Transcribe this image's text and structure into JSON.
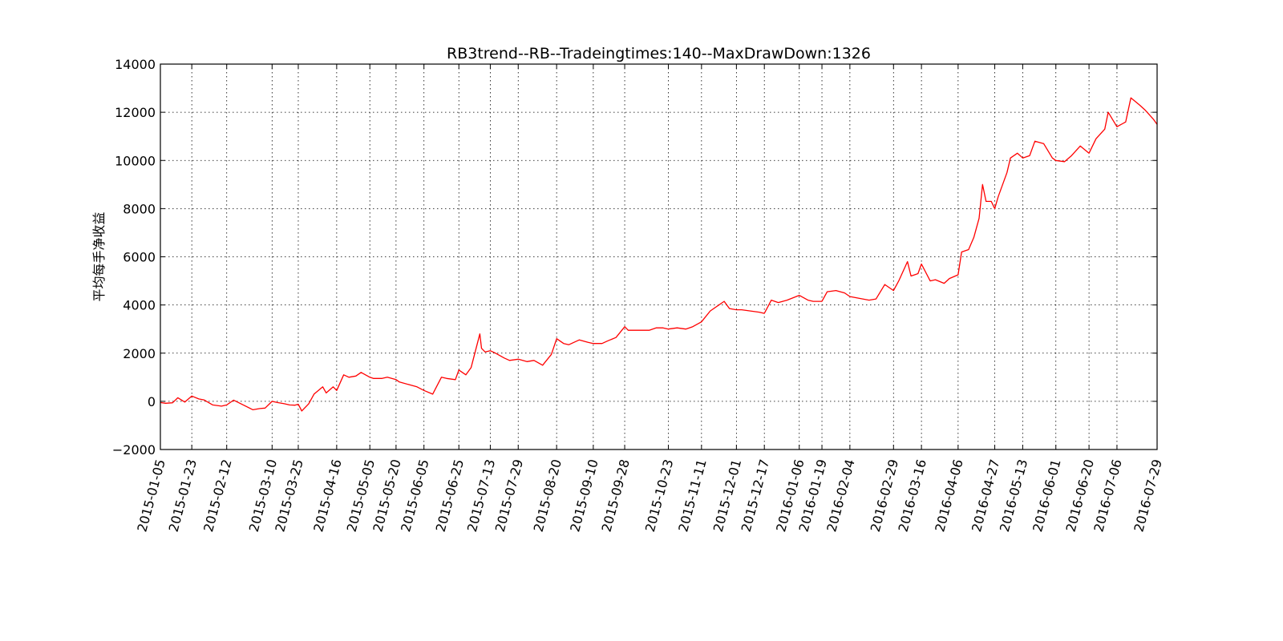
{
  "chart_data": {
    "type": "line",
    "title": "RB3trend--RB--Tradeingtimes:140--MaxDrawDown:1326",
    "xlabel": "",
    "ylabel": "平均每手净收益",
    "ylim": [
      -2000,
      14000
    ],
    "yticks": [
      -2000,
      0,
      2000,
      4000,
      6000,
      8000,
      10000,
      12000,
      14000
    ],
    "ytick_labels": [
      "−2000",
      "0",
      "2000",
      "4000",
      "6000",
      "8000",
      "10000",
      "12000",
      "14000"
    ],
    "xlim": [
      "2015-01-05",
      "2016-07-29"
    ],
    "xticks": [
      "2015-01-05",
      "2015-01-23",
      "2015-02-12",
      "2015-03-10",
      "2015-03-25",
      "2015-04-16",
      "2015-05-05",
      "2015-05-20",
      "2015-06-05",
      "2015-06-25",
      "2015-07-13",
      "2015-07-29",
      "2015-08-20",
      "2015-09-10",
      "2015-09-28",
      "2015-10-23",
      "2015-11-11",
      "2015-12-01",
      "2015-12-17",
      "2016-01-06",
      "2016-01-19",
      "2016-02-04",
      "2016-02-29",
      "2016-03-16",
      "2016-04-06",
      "2016-04-27",
      "2016-05-13",
      "2016-06-01",
      "2016-06-20",
      "2016-07-06",
      "2016-07-29"
    ],
    "grid": true,
    "colors": {
      "line": "#ff0000"
    },
    "x": [
      "2015-01-05",
      "2015-01-08",
      "2015-01-12",
      "2015-01-15",
      "2015-01-19",
      "2015-01-23",
      "2015-01-27",
      "2015-01-30",
      "2015-02-04",
      "2015-02-09",
      "2015-02-12",
      "2015-02-16",
      "2015-02-27",
      "2015-03-03",
      "2015-03-06",
      "2015-03-10",
      "2015-03-13",
      "2015-03-17",
      "2015-03-20",
      "2015-03-23",
      "2015-03-25",
      "2015-03-27",
      "2015-03-31",
      "2015-04-03",
      "2015-04-08",
      "2015-04-10",
      "2015-04-14",
      "2015-04-16",
      "2015-04-20",
      "2015-04-23",
      "2015-04-27",
      "2015-04-30",
      "2015-05-05",
      "2015-05-07",
      "2015-05-12",
      "2015-05-15",
      "2015-05-20",
      "2015-05-22",
      "2015-05-27",
      "2015-06-01",
      "2015-06-05",
      "2015-06-10",
      "2015-06-15",
      "2015-06-18",
      "2015-06-23",
      "2015-06-25",
      "2015-06-29",
      "2015-07-02",
      "2015-07-07",
      "2015-07-08",
      "2015-07-10",
      "2015-07-13",
      "2015-07-16",
      "2015-07-21",
      "2015-07-24",
      "2015-07-29",
      "2015-08-03",
      "2015-08-07",
      "2015-08-12",
      "2015-08-17",
      "2015-08-20",
      "2015-08-24",
      "2015-08-27",
      "2015-09-02",
      "2015-09-07",
      "2015-09-10",
      "2015-09-15",
      "2015-09-18",
      "2015-09-23",
      "2015-09-28",
      "2015-09-30",
      "2015-10-12",
      "2015-10-16",
      "2015-10-20",
      "2015-10-23",
      "2015-10-28",
      "2015-11-02",
      "2015-11-06",
      "2015-11-11",
      "2015-11-16",
      "2015-11-19",
      "2015-11-24",
      "2015-11-27",
      "2015-12-01",
      "2015-12-04",
      "2015-12-09",
      "2015-12-14",
      "2015-12-17",
      "2015-12-21",
      "2015-12-25",
      "2015-12-30",
      "2016-01-06",
      "2016-01-11",
      "2016-01-14",
      "2016-01-19",
      "2016-01-22",
      "2016-01-27",
      "2016-02-01",
      "2016-02-04",
      "2016-02-15",
      "2016-02-19",
      "2016-02-24",
      "2016-02-29",
      "2016-03-03",
      "2016-03-08",
      "2016-03-10",
      "2016-03-14",
      "2016-03-16",
      "2016-03-21",
      "2016-03-24",
      "2016-03-29",
      "2016-04-01",
      "2016-04-06",
      "2016-04-08",
      "2016-04-12",
      "2016-04-15",
      "2016-04-18",
      "2016-04-20",
      "2016-04-22",
      "2016-04-25",
      "2016-04-27",
      "2016-04-29",
      "2016-05-04",
      "2016-05-06",
      "2016-05-10",
      "2016-05-13",
      "2016-05-17",
      "2016-05-20",
      "2016-05-25",
      "2016-05-30",
      "2016-06-01",
      "2016-06-06",
      "2016-06-10",
      "2016-06-15",
      "2016-06-20",
      "2016-06-24",
      "2016-06-29",
      "2016-07-01",
      "2016-07-06",
      "2016-07-11",
      "2016-07-14",
      "2016-07-19",
      "2016-07-22",
      "2016-07-27",
      "2016-07-29"
    ],
    "series": [
      {
        "values": [
          -50,
          -80,
          -60,
          150,
          -30,
          220,
          100,
          60,
          -150,
          -200,
          -150,
          50,
          -350,
          -300,
          -280,
          0,
          -50,
          -100,
          -150,
          -160,
          -120,
          -400,
          -100,
          300,
          600,
          350,
          600,
          450,
          1100,
          1000,
          1050,
          1200,
          1000,
          950,
          950,
          1000,
          900,
          800,
          700,
          600,
          450,
          300,
          1000,
          950,
          900,
          1300,
          1100,
          1400,
          2800,
          2200,
          2050,
          2100,
          2000,
          1800,
          1700,
          1750,
          1650,
          1700,
          1500,
          1950,
          2600,
          2400,
          2350,
          2550,
          2450,
          2400,
          2400,
          2500,
          2650,
          3100,
          2950,
          2950,
          3050,
          3050,
          3000,
          3050,
          3000,
          3100,
          3300,
          3750,
          3900,
          4150,
          3850,
          3800,
          3800,
          3750,
          3700,
          3650,
          4200,
          4100,
          4200,
          4400,
          4200,
          4150,
          4150,
          4550,
          4600,
          4500,
          4350,
          4200,
          4250,
          4850,
          4600,
          5000,
          5800,
          5200,
          5300,
          5700,
          5000,
          5050,
          4900,
          5100,
          5250,
          6200,
          6300,
          6800,
          7600,
          9000,
          8300,
          8300,
          8000,
          8500,
          9500,
          10100,
          10300,
          10100,
          10200,
          10800,
          10700,
          10100,
          10000,
          9950,
          10200,
          10600,
          10300,
          10900,
          11300,
          12000,
          11400,
          11600,
          12600,
          12300,
          12100,
          11700,
          11500
        ]
      }
    ]
  }
}
